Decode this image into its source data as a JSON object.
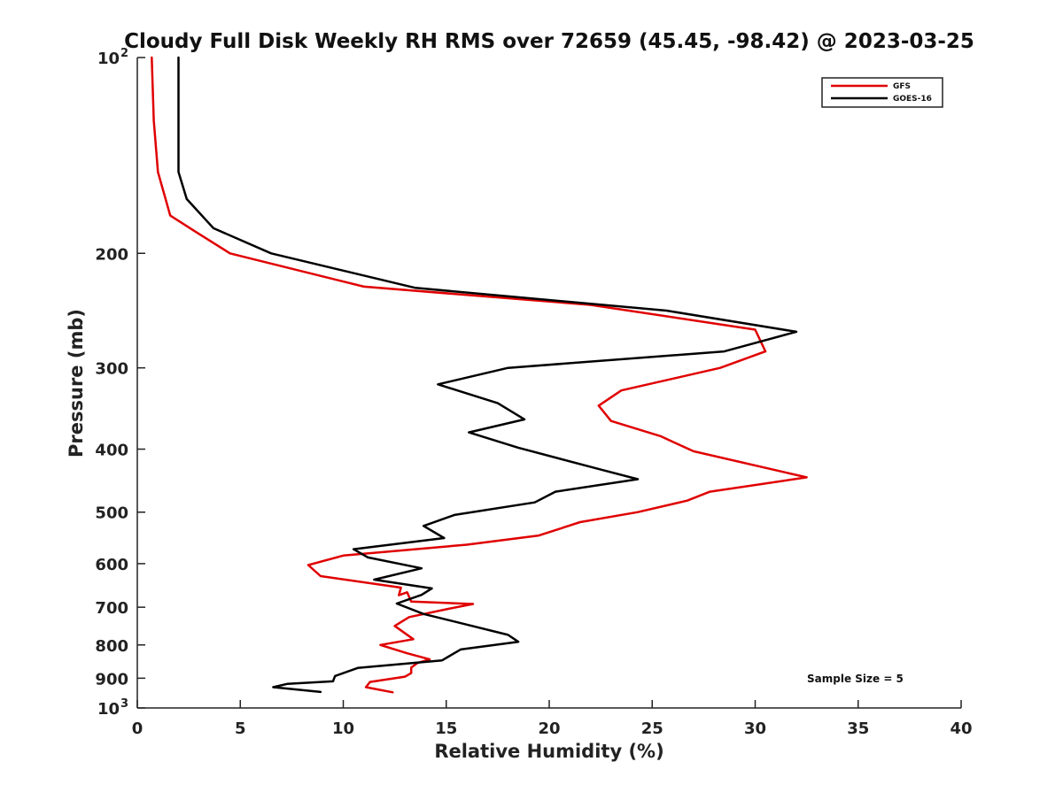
{
  "chart_data": {
    "type": "line",
    "title": "Cloudy Full Disk Weekly RH RMS over 72659 (45.45, -98.42) @ 2023-03-25",
    "xlabel": "Relative Humidity (%)",
    "ylabel": "Pressure (mb)",
    "xlim": [
      0,
      40
    ],
    "ylim": [
      100,
      1000
    ],
    "y_scale": "log",
    "y_reversed": true,
    "xticks": [
      0,
      5,
      10,
      15,
      20,
      25,
      30,
      35,
      40
    ],
    "yticks": [
      {
        "value": 100,
        "base": "10",
        "exp": "2"
      },
      {
        "value": 200,
        "label": "200"
      },
      {
        "value": 300,
        "label": "300"
      },
      {
        "value": 400,
        "label": "400"
      },
      {
        "value": 500,
        "label": "500"
      },
      {
        "value": 600,
        "label": "600"
      },
      {
        "value": 700,
        "label": "700"
      },
      {
        "value": 800,
        "label": "800"
      },
      {
        "value": 900,
        "label": "900"
      },
      {
        "value": 1000,
        "base": "10",
        "exp": "3"
      }
    ],
    "legend_position": "top-right",
    "grid": false,
    "annotation": "Sample Size = 5",
    "series": [
      {
        "name": "GFS",
        "color": "#e00000",
        "points": [
          [
            0.7,
            100
          ],
          [
            0.8,
            125
          ],
          [
            1.0,
            150
          ],
          [
            1.6,
            175
          ],
          [
            2.8,
            185
          ],
          [
            4.5,
            200
          ],
          [
            11.0,
            225
          ],
          [
            22.0,
            240
          ],
          [
            30.0,
            262
          ],
          [
            30.5,
            283
          ],
          [
            28.3,
            300
          ],
          [
            23.5,
            325
          ],
          [
            22.4,
            343
          ],
          [
            23.0,
            362
          ],
          [
            25.4,
            382
          ],
          [
            27.0,
            403
          ],
          [
            32.5,
            442
          ],
          [
            27.8,
            465
          ],
          [
            26.7,
            480
          ],
          [
            24.3,
            500
          ],
          [
            21.5,
            518
          ],
          [
            19.5,
            543
          ],
          [
            16.0,
            561
          ],
          [
            10.0,
            583
          ],
          [
            8.3,
            603
          ],
          [
            8.9,
            627
          ],
          [
            12.8,
            653
          ],
          [
            12.7,
            671
          ],
          [
            13.1,
            664
          ],
          [
            13.3,
            686
          ],
          [
            16.3,
            692
          ],
          [
            15.1,
            704
          ],
          [
            13.2,
            725
          ],
          [
            12.5,
            748
          ],
          [
            13.4,
            784
          ],
          [
            11.8,
            800
          ],
          [
            13.1,
            824
          ],
          [
            14.2,
            842
          ],
          [
            13.6,
            853
          ],
          [
            13.3,
            867
          ],
          [
            13.3,
            884
          ],
          [
            13.0,
            895
          ],
          [
            11.3,
            912
          ],
          [
            11.1,
            929
          ],
          [
            12.4,
            946
          ]
        ]
      },
      {
        "name": "GOES-16",
        "color": "#000000",
        "points": [
          [
            2.0,
            100
          ],
          [
            2.0,
            150
          ],
          [
            2.4,
            165
          ],
          [
            3.7,
            183
          ],
          [
            6.5,
            200
          ],
          [
            13.5,
            226
          ],
          [
            25.7,
            245
          ],
          [
            32.0,
            264
          ],
          [
            28.5,
            283
          ],
          [
            18.0,
            300
          ],
          [
            14.6,
            318
          ],
          [
            17.5,
            340
          ],
          [
            18.8,
            360
          ],
          [
            16.1,
            377
          ],
          [
            18.5,
            398
          ],
          [
            22.5,
            430
          ],
          [
            24.3,
            445
          ],
          [
            20.3,
            465
          ],
          [
            19.3,
            483
          ],
          [
            15.4,
            505
          ],
          [
            13.9,
            525
          ],
          [
            14.9,
            548
          ],
          [
            10.5,
            570
          ],
          [
            11.2,
            587
          ],
          [
            13.8,
            610
          ],
          [
            11.5,
            635
          ],
          [
            14.3,
            655
          ],
          [
            13.8,
            670
          ],
          [
            12.6,
            691
          ],
          [
            13.9,
            717
          ],
          [
            15.8,
            742
          ],
          [
            18.0,
            772
          ],
          [
            18.5,
            791
          ],
          [
            15.7,
            813
          ],
          [
            14.8,
            845
          ],
          [
            10.7,
            868
          ],
          [
            9.6,
            893
          ],
          [
            9.5,
            910
          ],
          [
            7.3,
            918
          ],
          [
            6.6,
            929
          ],
          [
            8.9,
            945
          ]
        ]
      }
    ]
  }
}
